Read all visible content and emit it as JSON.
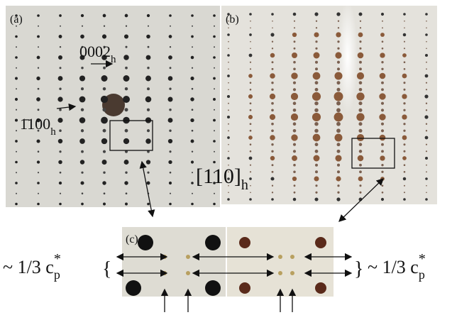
{
  "panels": [
    {
      "label": "(a)"
    },
    {
      "label": "(b)"
    },
    {
      "label": "(c)"
    }
  ],
  "reflections": [
    {
      "index": "0002",
      "subscript": "h"
    },
    {
      "index": "1̄100",
      "subscript": "h"
    }
  ],
  "zone_axis": {
    "index": "[110]",
    "subscript": "h"
  },
  "spacing_label": {
    "text": "~ 1/3 c",
    "subscript": "p",
    "superscript": "*"
  },
  "braces": {
    "open": "{",
    "close": "}"
  }
}
